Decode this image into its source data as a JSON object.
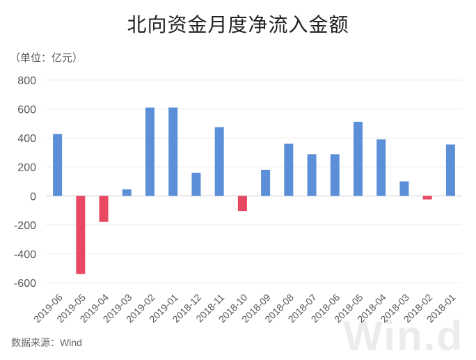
{
  "chart_data": {
    "type": "bar",
    "title": "北向资金月度净流入金额",
    "unit_label": "（单位：亿元）",
    "source": "数据来源：Wind",
    "watermark": "Win.d",
    "categories": [
      "2019-06",
      "2019-05",
      "2019-04",
      "2019-03",
      "2019-02",
      "2019-01",
      "2018-12",
      "2018-11",
      "2018-10",
      "2018-09",
      "2018-08",
      "2018-07",
      "2018-06",
      "2018-05",
      "2018-04",
      "2018-03",
      "2018-02",
      "2018-01"
    ],
    "values": [
      428,
      -540,
      -180,
      45,
      610,
      610,
      160,
      475,
      -105,
      180,
      360,
      288,
      288,
      512,
      390,
      100,
      -25,
      355
    ],
    "ylim": [
      -600,
      800
    ],
    "yticks": [
      800,
      600,
      400,
      200,
      0,
      -200,
      -400,
      -600
    ],
    "grid": true,
    "colors": {
      "positive": "#5b8fd8",
      "negative": "#e84861"
    }
  }
}
